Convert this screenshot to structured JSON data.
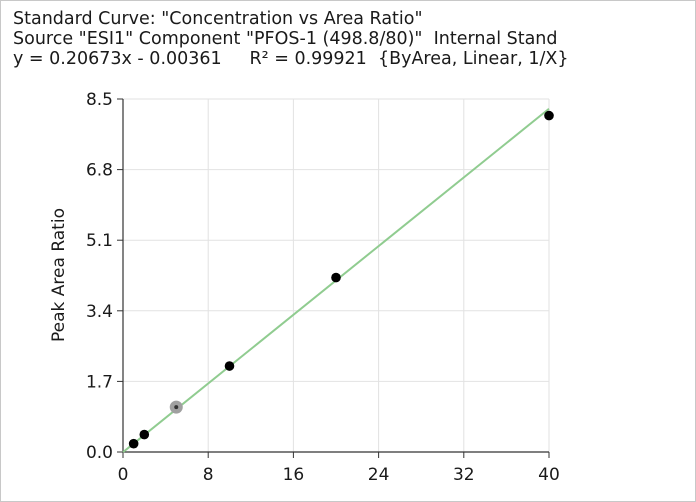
{
  "header": {
    "line1": "Standard Curve: \"Concentration vs Area Ratio\"",
    "line2": "Source \"ESI1\" Component \"PFOS-1 (498.8/80)\"  Internal Stand",
    "line3": "y = 0.20673x - 0.00361     R² = 0.99921  {ByArea, Linear, 1/X}"
  },
  "chart_data": {
    "type": "scatter",
    "ylabel": "Peak Area Ratio",
    "xlabel": "",
    "xlim": [
      0,
      40
    ],
    "ylim": [
      0,
      8.5
    ],
    "xticks": [
      "0",
      "8",
      "16",
      "24",
      "32",
      "40"
    ],
    "yticks": [
      "0.0",
      "1.7",
      "3.4",
      "5.1",
      "6.8",
      "8.5"
    ],
    "grid": true,
    "series": [
      {
        "points": [
          {
            "x": 1,
            "y": 0.2
          },
          {
            "x": 2,
            "y": 0.42
          },
          {
            "x": 5,
            "y": 1.08,
            "excluded": true
          },
          {
            "x": 10,
            "y": 2.07
          },
          {
            "x": 20,
            "y": 4.2
          },
          {
            "x": 40,
            "y": 8.1
          }
        ],
        "color": "#000000",
        "excluded_color": "#a0a0a0"
      }
    ],
    "fit_line": {
      "slope": 0.20673,
      "intercept": -0.00361,
      "x_range": [
        0,
        40
      ],
      "color": "#90cc90"
    }
  }
}
